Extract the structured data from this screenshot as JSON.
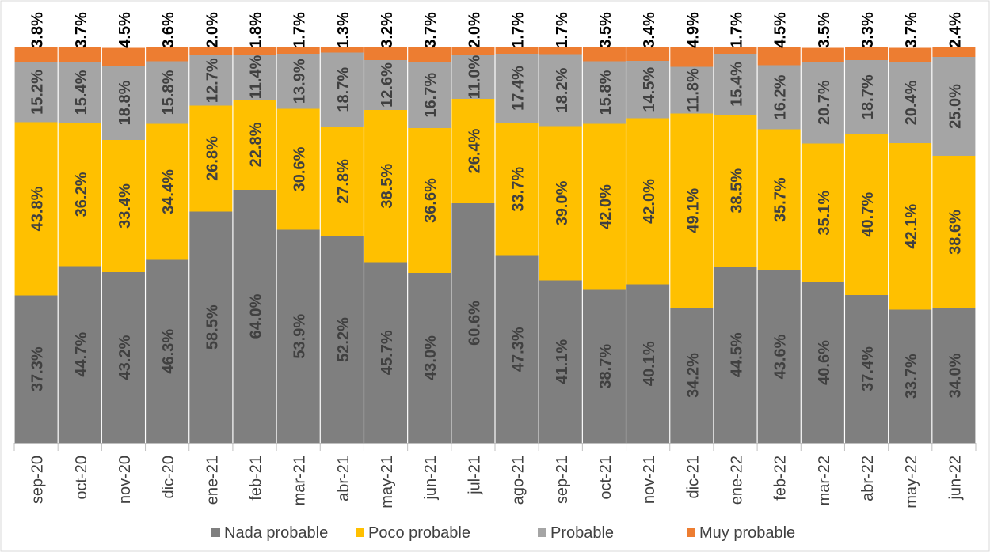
{
  "chart_data": {
    "type": "bar",
    "stacked": true,
    "percent": true,
    "ylim": [
      0,
      100
    ],
    "grid": false,
    "legend_position": "bottom",
    "categories": [
      "sep-20",
      "oct-20",
      "nov-20",
      "dic-20",
      "ene-21",
      "feb-21",
      "mar-21",
      "abr-21",
      "may-21",
      "jun-21",
      "jul-21",
      "ago-21",
      "sep-21",
      "oct-21",
      "nov-21",
      "dic-21",
      "ene-22",
      "feb-22",
      "mar-22",
      "abr-22",
      "may-22",
      "jun-22"
    ],
    "series": [
      {
        "name": "Nada probable",
        "color": "#7f7f7f",
        "label_color": "#404040",
        "values": [
          37.3,
          44.7,
          43.2,
          46.3,
          58.5,
          64.0,
          53.9,
          52.2,
          45.7,
          43.0,
          60.6,
          47.3,
          41.1,
          38.7,
          40.1,
          34.2,
          44.5,
          43.6,
          40.6,
          37.4,
          33.7,
          34.0
        ],
        "labels": [
          "37.3%",
          "44.7%",
          "43.2%",
          "46.3%",
          "58.5%",
          "64.0%",
          "53.9%",
          "52.2%",
          "45.7%",
          "43.0%",
          "60.6%",
          "47.3%",
          "41.1%",
          "38.7%",
          "40.1%",
          "34.2%",
          "44.5%",
          "43.6%",
          "40.6%",
          "37.4%",
          "33.7%",
          "34.0%"
        ]
      },
      {
        "name": "Poco probable",
        "color": "#ffc000",
        "label_color": "#404040",
        "values": [
          43.8,
          36.2,
          33.4,
          34.4,
          26.8,
          22.8,
          30.6,
          27.8,
          38.5,
          36.6,
          26.4,
          33.7,
          39.0,
          42.0,
          42.0,
          49.1,
          38.5,
          35.7,
          35.1,
          40.7,
          42.1,
          38.6
        ],
        "labels": [
          "43.8%",
          "36.2%",
          "33.4%",
          "34.4%",
          "26.8%",
          "22.8%",
          "30.6%",
          "27.8%",
          "38.5%",
          "36.6%",
          "26.4%",
          "33.7%",
          "39.0%",
          "42.0%",
          "42.0%",
          "49.1%",
          "38.5%",
          "35.7%",
          "35.1%",
          "40.7%",
          "42.1%",
          "38.6%"
        ]
      },
      {
        "name": "Probable",
        "color": "#a5a5a5",
        "label_color": "#404040",
        "values": [
          15.2,
          15.4,
          18.8,
          15.8,
          12.7,
          11.4,
          13.9,
          18.7,
          12.6,
          16.7,
          11.0,
          17.4,
          18.2,
          15.8,
          14.5,
          11.8,
          15.4,
          16.2,
          20.7,
          18.7,
          20.4,
          25.0
        ],
        "labels": [
          "15.2%",
          "15.4%",
          "18.8%",
          "15.8%",
          "12.7%",
          "11.4%",
          "13.9%",
          "18.7%",
          "12.6%",
          "16.7%",
          "11.0%",
          "17.4%",
          "18.2%",
          "15.8%",
          "14.5%",
          "11.8%",
          "15.4%",
          "16.2%",
          "20.7%",
          "18.7%",
          "20.4%",
          "25.0%"
        ]
      },
      {
        "name": "Muy probable",
        "color": "#ed7d31",
        "label_color": "#000000",
        "values": [
          3.8,
          3.7,
          4.5,
          3.6,
          2.0,
          1.8,
          1.7,
          1.3,
          3.2,
          3.7,
          2.0,
          1.7,
          1.7,
          3.5,
          3.4,
          4.9,
          1.7,
          4.5,
          3.5,
          3.3,
          3.7,
          2.4
        ],
        "labels": [
          "3.8%",
          "3.7%",
          "4.5%",
          "3.6%",
          "2.0%",
          "1.8%",
          "1.7%",
          "1.3%",
          "3.2%",
          "3.7%",
          "2.0%",
          "1.7%",
          "1.7%",
          "3.5%",
          "3.4%",
          "4.9%",
          "1.7%",
          "4.5%",
          "3.5%",
          "3.3%",
          "3.7%",
          "2.4%"
        ]
      }
    ]
  }
}
